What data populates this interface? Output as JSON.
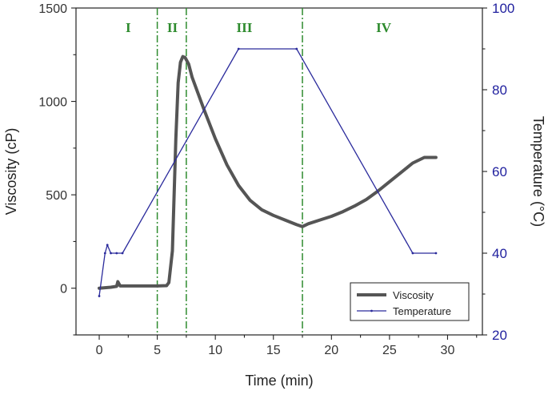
{
  "chart_data": {
    "type": "line",
    "title": "",
    "xlabel": "Time (min)",
    "ylabel_left": "Viscosity (cP)",
    "ylabel_right": "Temperature (°C)",
    "xlim": [
      -2,
      33
    ],
    "ylim_left": [
      -250,
      1500
    ],
    "ylim_right": [
      20,
      100
    ],
    "x_ticks": [
      0,
      5,
      10,
      15,
      20,
      25,
      30
    ],
    "y_left_ticks": [
      0,
      500,
      1000,
      1500
    ],
    "y_right_ticks": [
      20,
      40,
      60,
      80,
      100
    ],
    "grid": false,
    "legend_position": "bottom-right",
    "regions": [
      {
        "label": "I",
        "x_center": 2.5
      },
      {
        "label": "II",
        "x_center": 6.3
      },
      {
        "label": "III",
        "x_center": 12.5
      },
      {
        "label": "IV",
        "x_center": 24.5
      }
    ],
    "region_boundaries": [
      5.0,
      7.5,
      17.5
    ],
    "series": [
      {
        "name": "Viscosity",
        "axis": "left",
        "color": "#555555",
        "x": [
          0.0,
          1.0,
          1.5,
          1.6,
          1.8,
          2.0,
          3.0,
          4.0,
          5.0,
          5.8,
          6.0,
          6.3,
          6.6,
          6.8,
          7.0,
          7.2,
          7.4,
          7.7,
          8.0,
          9.0,
          10.0,
          11.0,
          12.0,
          13.0,
          14.0,
          15.0,
          16.0,
          17.0,
          17.5,
          18.0,
          19.0,
          20.0,
          21.0,
          22.0,
          23.0,
          24.0,
          25.0,
          26.0,
          27.0,
          28.0,
          29.0
        ],
        "values": [
          0,
          5,
          10,
          35,
          12,
          12,
          12,
          12,
          12,
          14,
          30,
          200,
          800,
          1100,
          1210,
          1240,
          1235,
          1200,
          1130,
          960,
          800,
          660,
          550,
          470,
          420,
          390,
          365,
          340,
          330,
          345,
          365,
          385,
          410,
          440,
          475,
          520,
          570,
          620,
          670,
          700,
          700
        ]
      },
      {
        "name": "Temperature",
        "axis": "right",
        "color": "#2b2b9c",
        "x": [
          0.0,
          0.5,
          0.7,
          1.0,
          1.5,
          2.0,
          12.0,
          17.0,
          27.0,
          29.0
        ],
        "values": [
          29.5,
          40,
          42,
          40,
          40,
          40,
          90,
          90,
          40,
          40
        ]
      }
    ]
  }
}
